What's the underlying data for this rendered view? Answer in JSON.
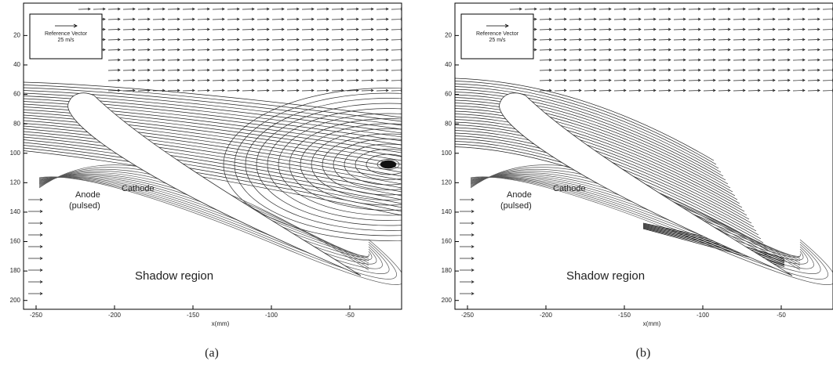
{
  "panels": [
    {
      "caption": "(a)",
      "xlabel": "x(mm)",
      "xlim": [
        -258,
        -17
      ],
      "ylim": [
        -2,
        206
      ],
      "xticks": [
        -250,
        -200,
        -150,
        -100,
        -50
      ],
      "yticks": [
        20,
        40,
        60,
        80,
        100,
        120,
        140,
        160,
        180,
        200
      ],
      "legend": {
        "title": "Reference Vector",
        "value": "25 m/s"
      },
      "annotations": {
        "anode": "Anode",
        "pulsed": "(pulsed)",
        "cathode": "Cathode",
        "shadow": "Shadow region"
      }
    },
    {
      "caption": "(b)",
      "xlabel": "x(mm)",
      "xlim": [
        -258,
        -17
      ],
      "ylim": [
        -2,
        206
      ],
      "xticks": [
        -250,
        -200,
        -150,
        -100,
        -50
      ],
      "yticks": [
        20,
        40,
        60,
        80,
        100,
        120,
        140,
        160,
        180,
        200
      ],
      "legend": {
        "title": "Reference Vector",
        "value": "25 m/s"
      },
      "annotations": {
        "anode": "Anode",
        "pulsed": "(pulsed)",
        "cathode": "Cathode",
        "shadow": "Shadow region"
      }
    }
  ]
}
